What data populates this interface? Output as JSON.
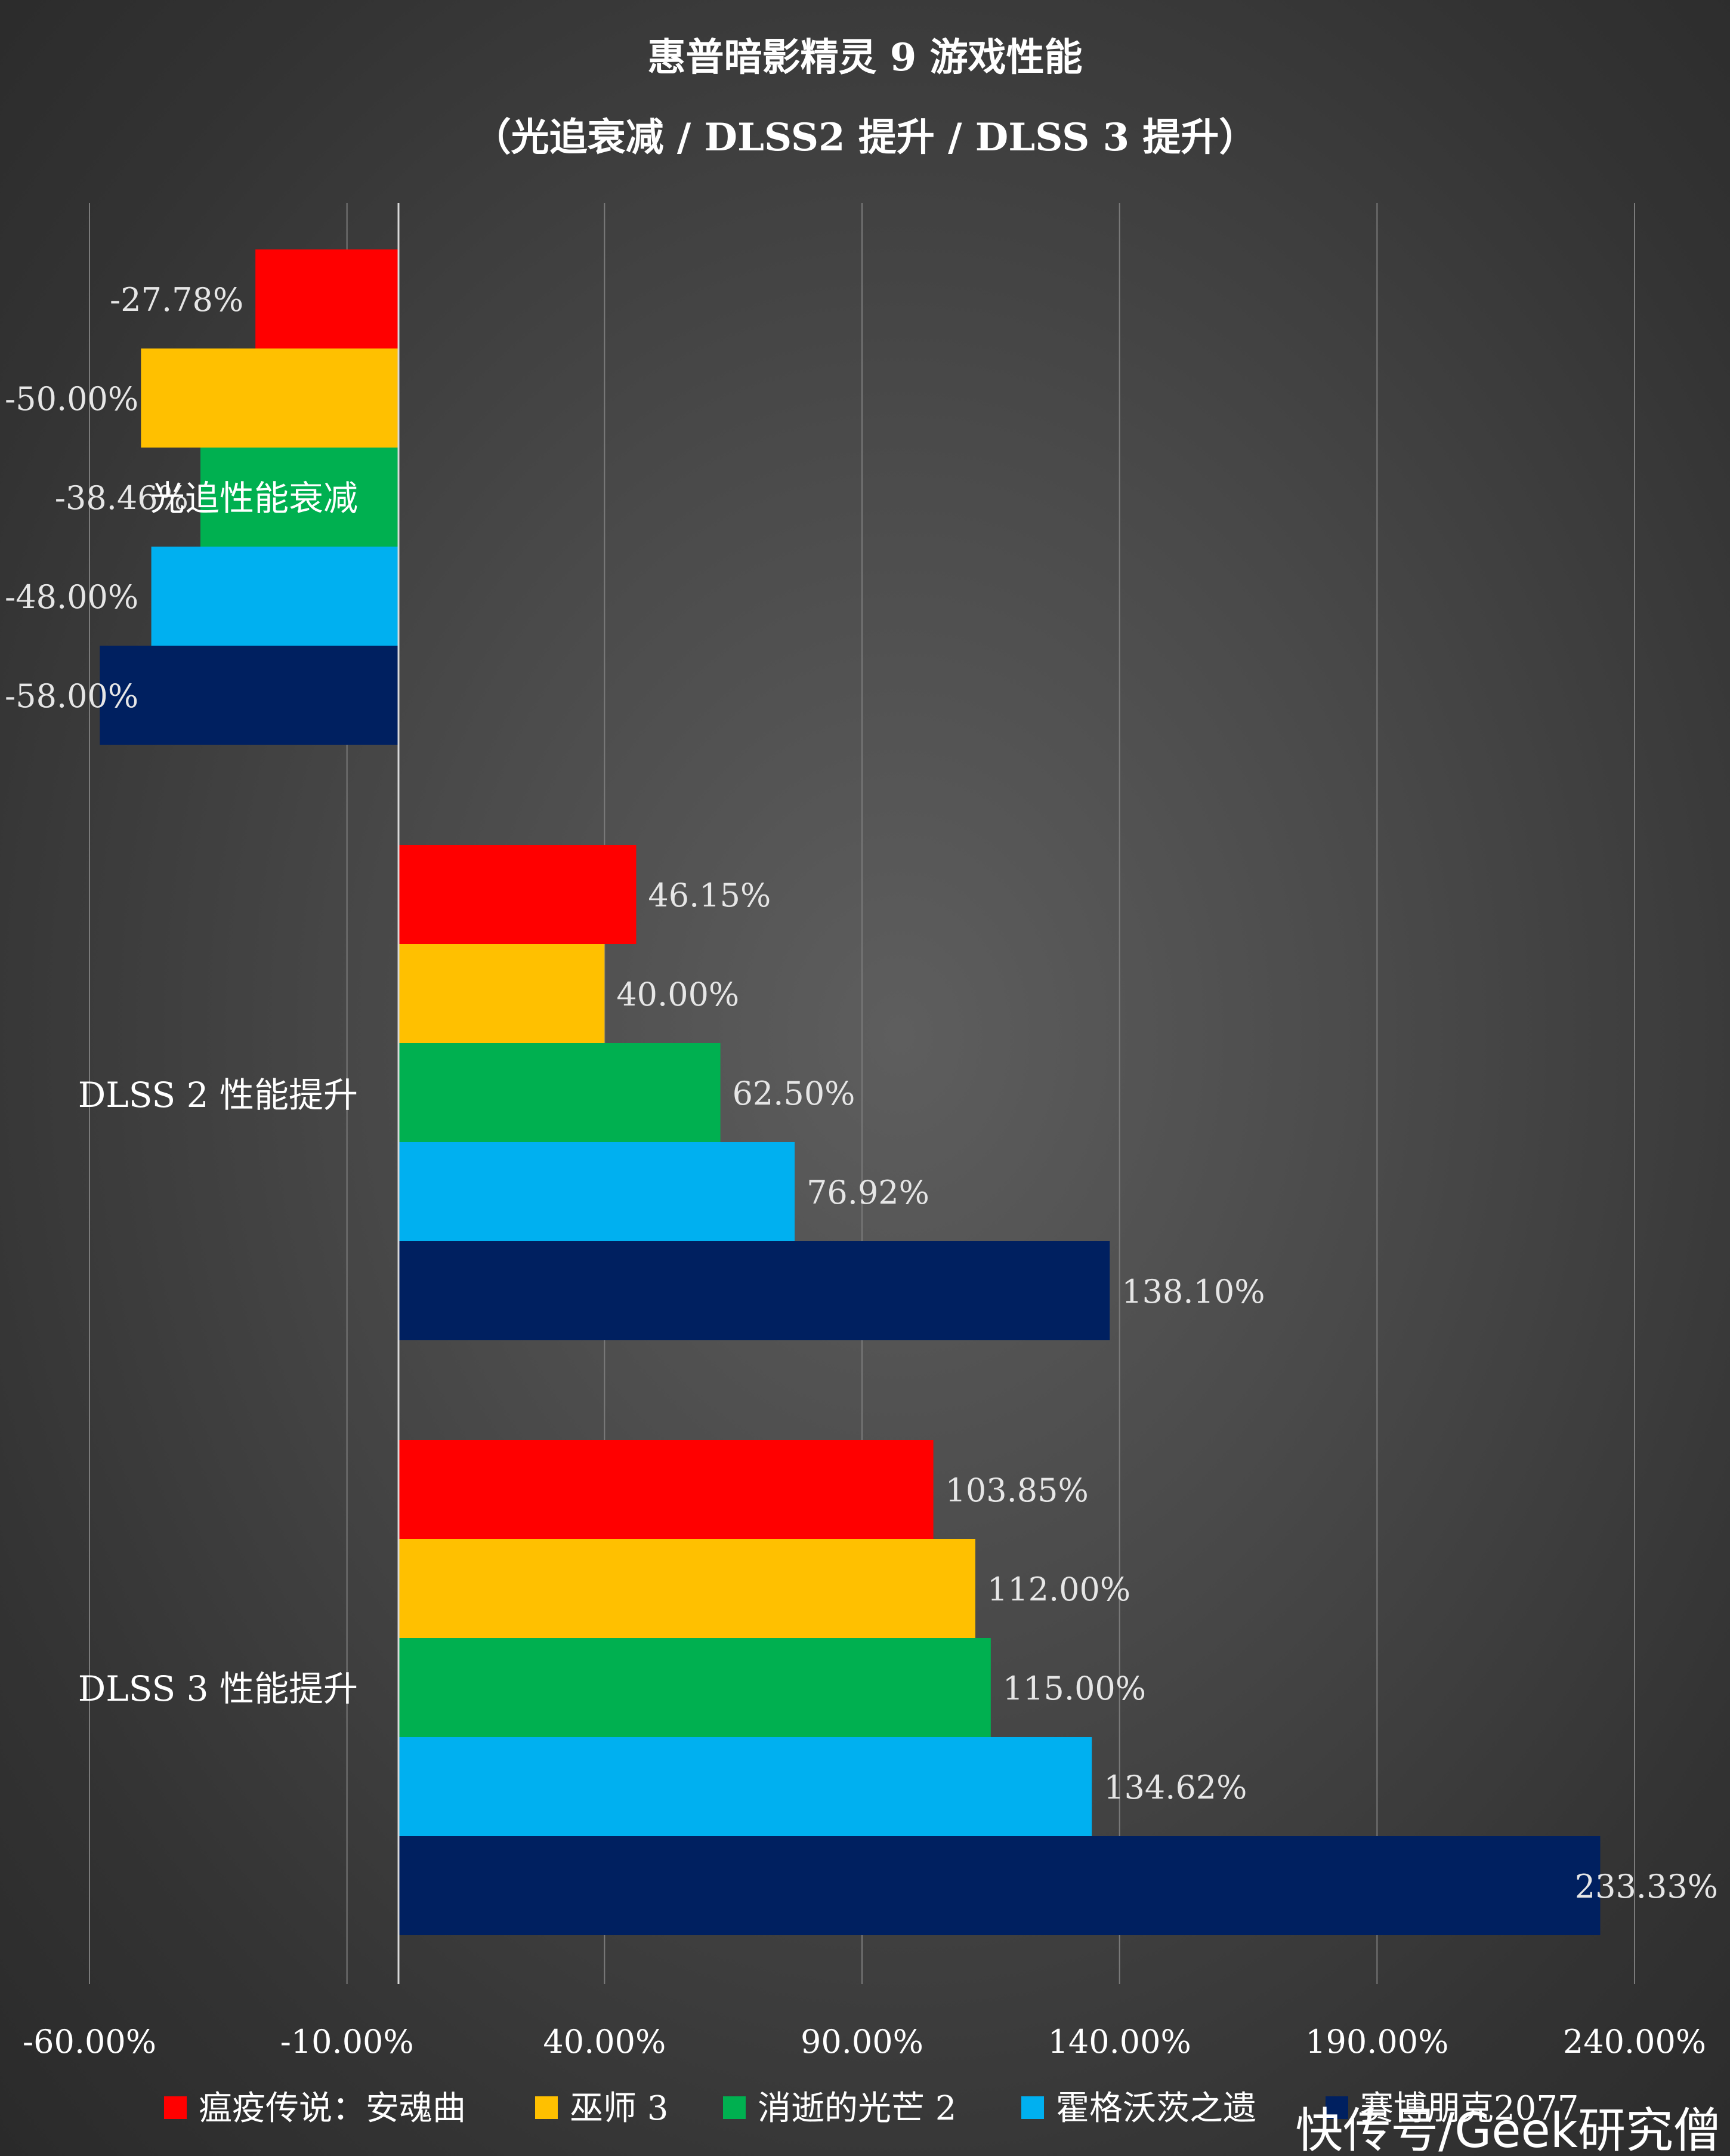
{
  "chart_data": {
    "type": "bar",
    "orientation": "horizontal",
    "title": "惠普暗影精灵 9 游戏性能",
    "subtitle": "（光追衰减 / DLSS2 提升 / DLSS 3 提升）",
    "categories": [
      "光追性能衰减",
      "DLSS 2 性能提升",
      "DLSS 3 性能提升"
    ],
    "series": [
      {
        "name": "瘟疫传说：安魂曲",
        "color": "#ff0000",
        "values": [
          -27.78,
          46.15,
          103.85
        ],
        "labels": [
          "-27.78%",
          "46.15%",
          "103.85%"
        ]
      },
      {
        "name": "巫师 3",
        "color": "#ffc000",
        "values": [
          -50.0,
          40.0,
          112.0
        ],
        "labels": [
          "-50.00%",
          "40.00%",
          "112.00%"
        ]
      },
      {
        "name": "消逝的光芒 2",
        "color": "#00b050",
        "values": [
          -38.46,
          62.5,
          115.0
        ],
        "labels": [
          "-38.46%",
          "62.50%",
          "115.00%"
        ]
      },
      {
        "name": "霍格沃茨之遗",
        "color": "#00b0f0",
        "values": [
          -48.0,
          76.92,
          134.62
        ],
        "labels": [
          "-48.00%",
          "76.92%",
          "134.62%"
        ]
      },
      {
        "name": "赛博朋克2077",
        "color": "#002060",
        "values": [
          -58.0,
          138.1,
          233.33
        ],
        "labels": [
          "-58.00%",
          "138.10%",
          "233.33%"
        ]
      }
    ],
    "x_ticks": [
      "-60.00%",
      "-10.00%",
      "40.00%",
      "90.00%",
      "140.00%",
      "190.00%",
      "240.00%"
    ],
    "xlim": [
      -60,
      240
    ],
    "grid": true,
    "legend_position": "bottom"
  },
  "watermark": "快传号/Geek研究僧"
}
